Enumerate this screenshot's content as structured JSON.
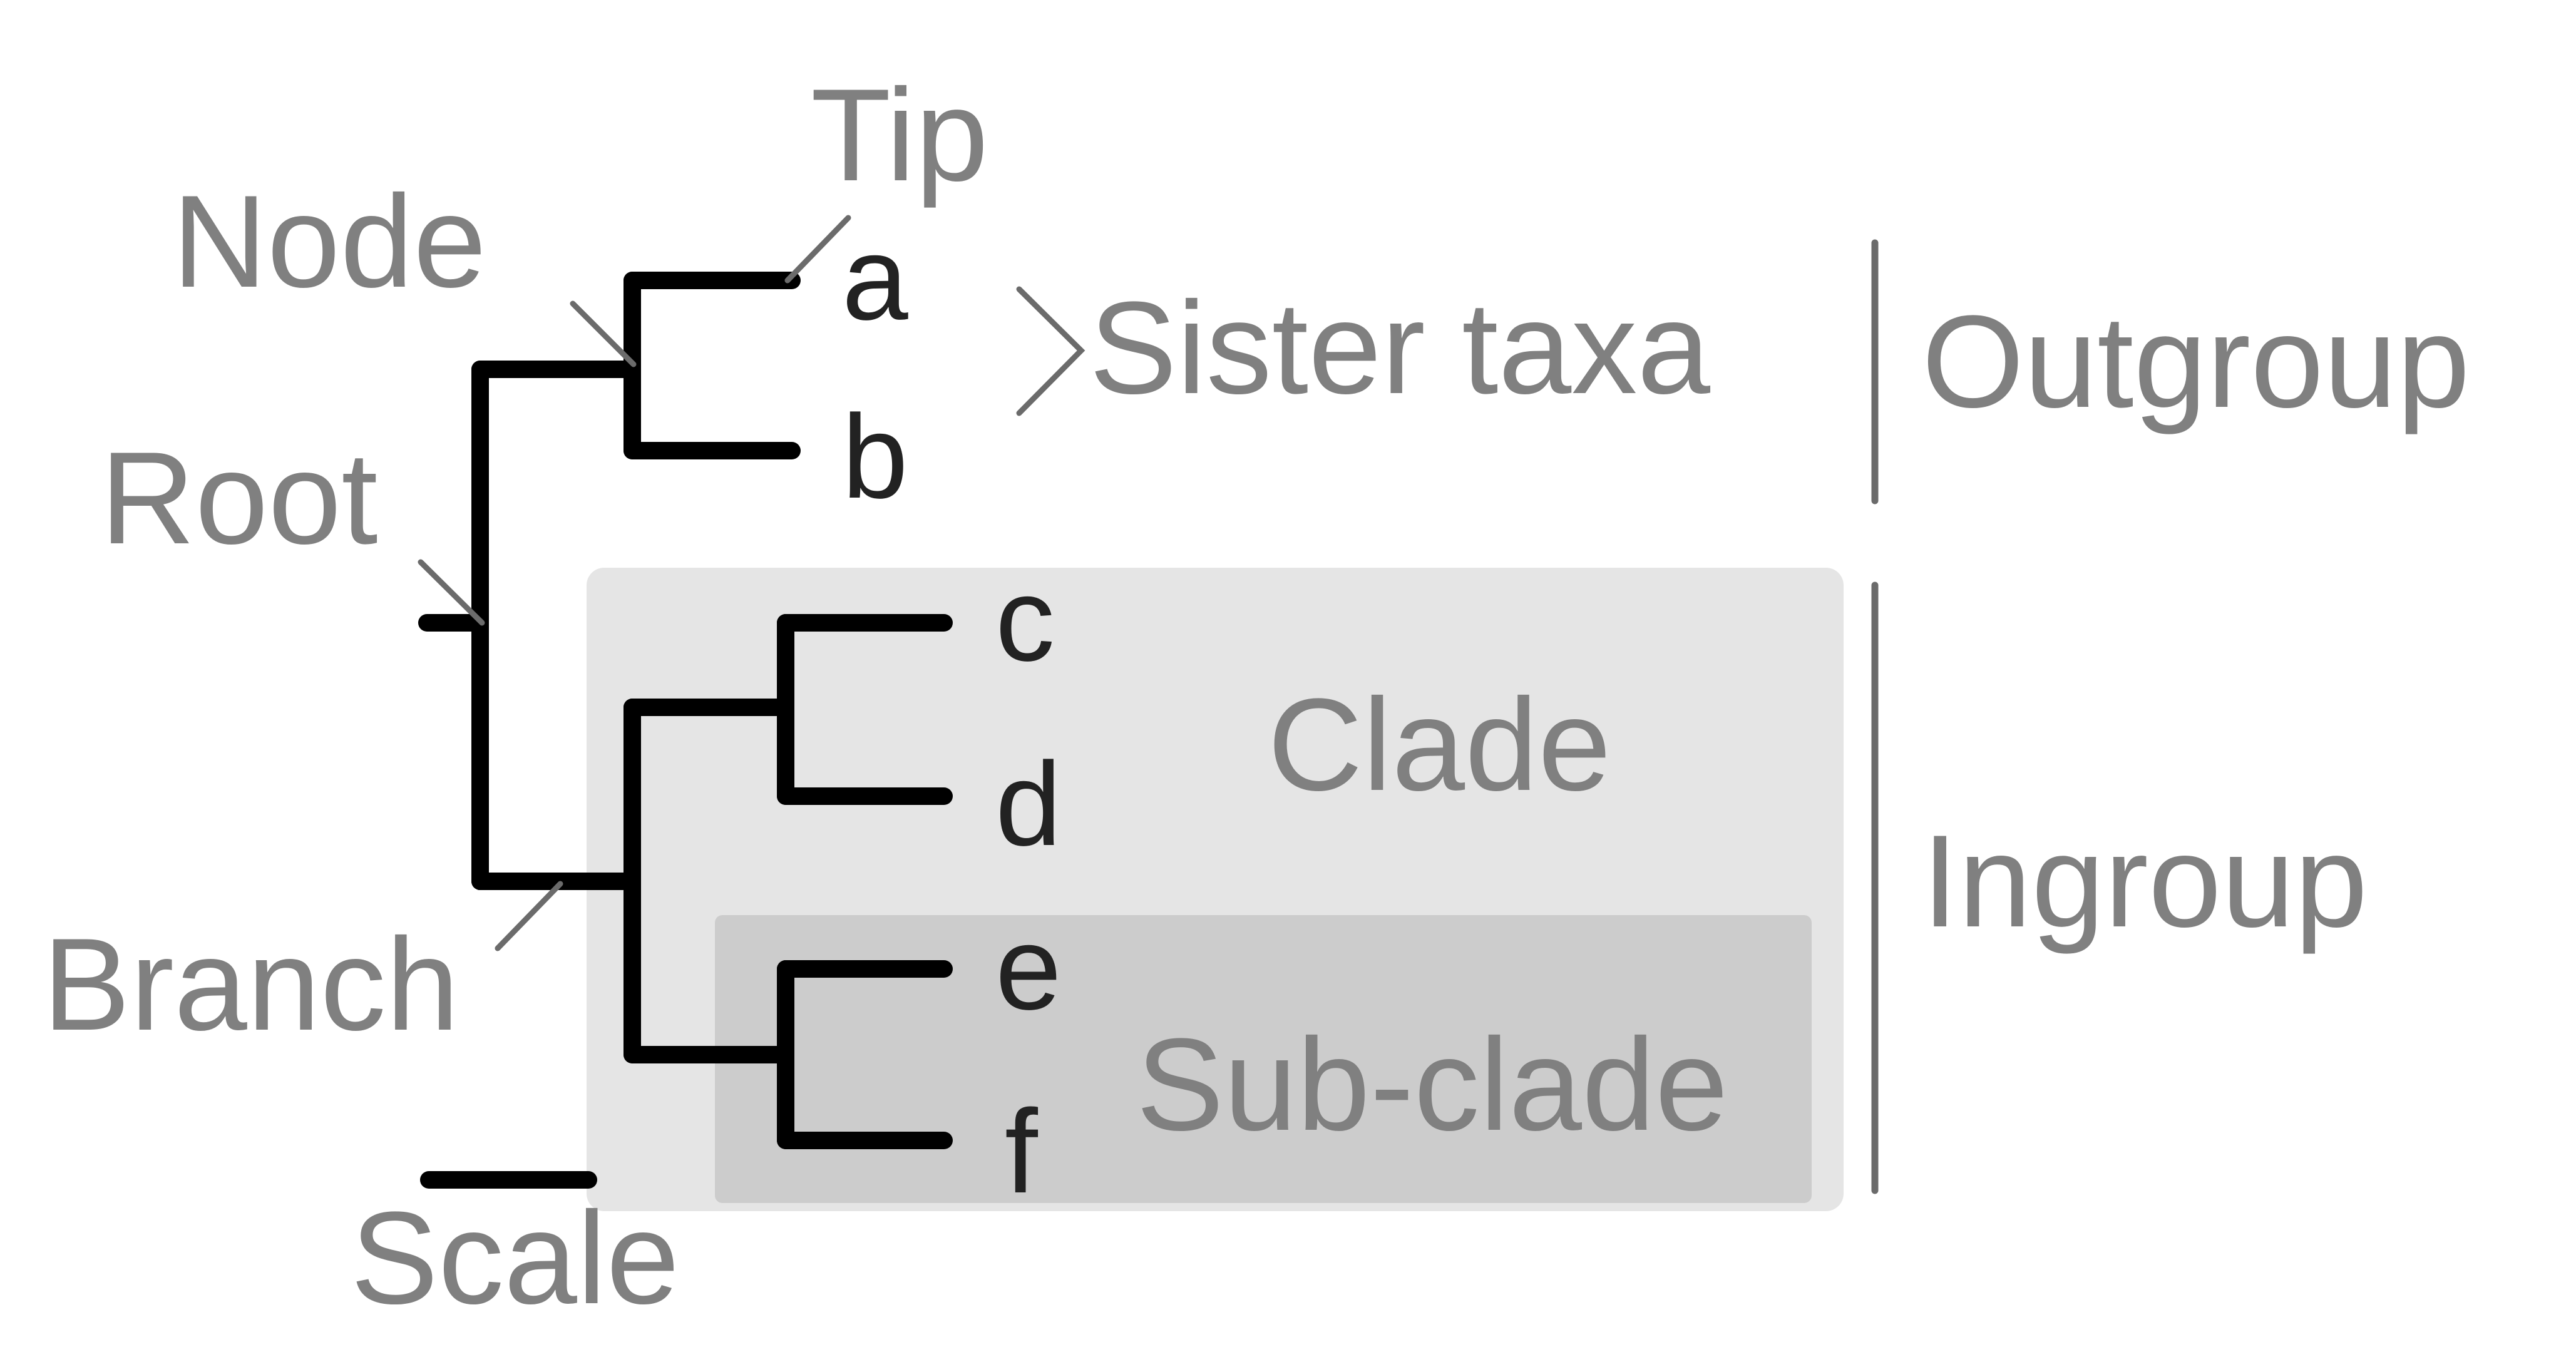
{
  "diagram": {
    "labels": {
      "tip": "Tip",
      "node": "Node",
      "root": "Root",
      "branch": "Branch",
      "scale": "Scale",
      "sister_taxa": "Sister taxa",
      "outgroup": "Outgroup",
      "ingroup": "Ingroup",
      "clade": "Clade",
      "sub_clade": "Sub-clade"
    },
    "taxa": {
      "a": "a",
      "b": "b",
      "c": "c",
      "d": "d",
      "e": "e",
      "f": "f"
    },
    "colors": {
      "label_gray": "#808080",
      "clade_fill": "#e5e5e5",
      "sub_clade_fill": "#cccccc",
      "branch": "#000000",
      "tip_text": "#222222"
    }
  }
}
